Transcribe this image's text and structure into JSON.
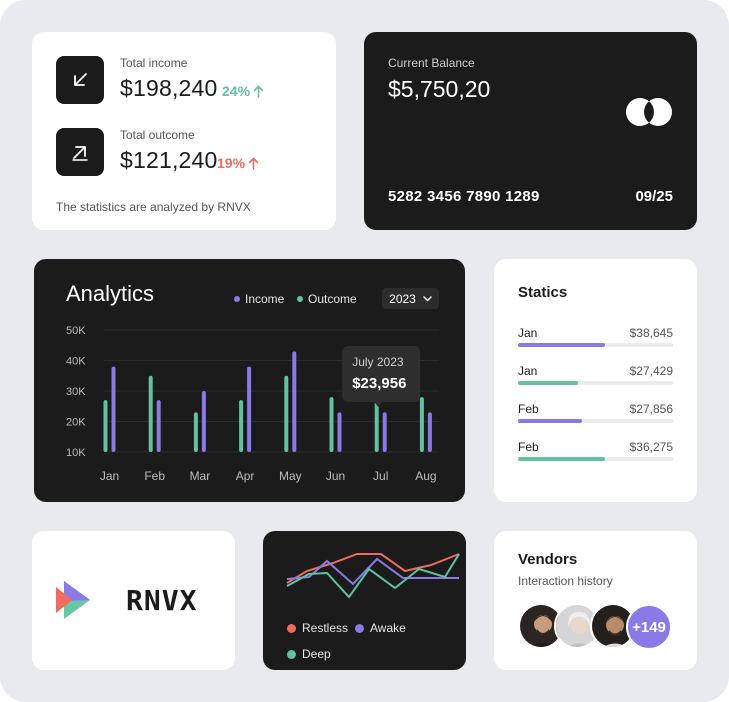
{
  "colors": {
    "income": "#8b79e6",
    "outcome": "#62c2a0",
    "up_good": "#62c2a0",
    "up_bad": "#ef6b5f",
    "dark_card": "#1b1b1b",
    "restless": "#ef6b5f",
    "awake": "#8b79e6",
    "deep": "#62c2a0"
  },
  "summary": {
    "income_icon": "arrow-down-left-icon",
    "income_label": "Total income",
    "income_amount": "$198,240",
    "income_pct": "24%",
    "outcome_icon": "arrow-up-right-icon",
    "outcome_label": "Total outcome",
    "outcome_amount": "$121,240",
    "outcome_pct": "19%",
    "note": "The statistics are analyzed by RNVX"
  },
  "balance": {
    "label": "Current Balance",
    "amount": "$5,750,20",
    "card_number": "5282 3456 7890 1289",
    "expiry": "09/25",
    "brand_icon": "card-brand-circles-icon"
  },
  "analytics": {
    "title": "Analytics",
    "legend_income": "Income",
    "legend_outcome": "Outcome",
    "year": "2023",
    "tooltip_title": "July 2023",
    "tooltip_value": "$23,956"
  },
  "chart_data": {
    "type": "bar",
    "title": "Analytics",
    "categories": [
      "Jan",
      "Feb",
      "Mar",
      "Apr",
      "May",
      "Jun",
      "Jul",
      "Aug"
    ],
    "y_ticks": [
      "50K",
      "40K",
      "30K",
      "20K",
      "10K"
    ],
    "ylim": [
      0,
      50000
    ],
    "series": [
      {
        "name": "Outcome",
        "values": [
          27000,
          35000,
          23000,
          27000,
          35000,
          28000,
          27000,
          28000
        ]
      },
      {
        "name": "Income",
        "values": [
          38000,
          27000,
          30000,
          38000,
          43000,
          23000,
          23000,
          23000
        ]
      }
    ],
    "legend": "top",
    "grid": true
  },
  "statics": {
    "title": "Statics",
    "rows": [
      {
        "month": "Jan",
        "value": "$38,645",
        "fraction": 0.56,
        "series": "income"
      },
      {
        "month": "Jan",
        "value": "$27,429",
        "fraction": 0.39,
        "series": "outcome"
      },
      {
        "month": "Feb",
        "value": "$27,856",
        "fraction": 0.41,
        "series": "income"
      },
      {
        "month": "Feb",
        "value": "$36,275",
        "fraction": 0.56,
        "series": "outcome"
      }
    ]
  },
  "logo": {
    "wordmark": "RNVX",
    "mark_icon": "play-triangles-logo-icon"
  },
  "sleep": {
    "legend": [
      {
        "label": "Restless",
        "color": "#ef6b5f"
      },
      {
        "label": "Awake",
        "color": "#8b79e6"
      },
      {
        "label": "Deep",
        "color": "#62c2a0"
      }
    ]
  },
  "vendors": {
    "title": "Vendors",
    "subtitle": "Interaction history",
    "more": "+149"
  }
}
